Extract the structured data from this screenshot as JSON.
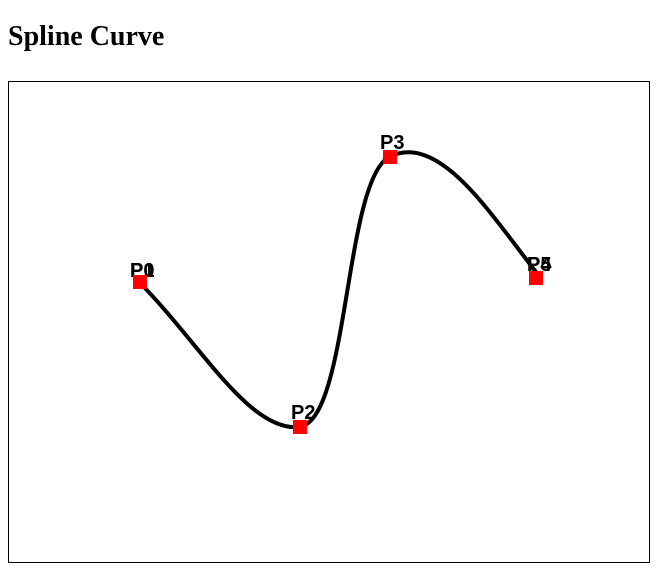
{
  "page": {
    "title": "Spline Curve"
  },
  "curve": {
    "stroke_color": "#000000"
  },
  "control_points": {
    "marker_color": "#ff0000",
    "items": [
      {
        "id": "p0",
        "label": "P0",
        "overprinted_label": "P1"
      },
      {
        "id": "p2",
        "label": "P2"
      },
      {
        "id": "p3",
        "label": "P3"
      },
      {
        "id": "p5",
        "label": "P5",
        "overprinted_label": "P4"
      }
    ]
  }
}
